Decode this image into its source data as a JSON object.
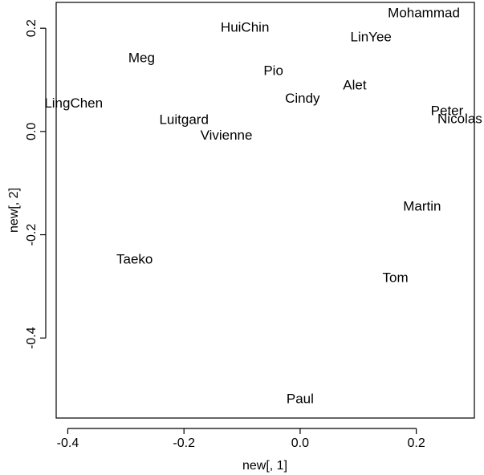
{
  "chart_data": {
    "type": "scatter",
    "marker": "text-labels",
    "xlabel": "new[, 1]",
    "ylabel": "new[, 2]",
    "xlim": [
      -0.42,
      0.3
    ],
    "ylim": [
      -0.555,
      0.25
    ],
    "x_ticks": [
      {
        "value": -0.4,
        "label": "-0.4"
      },
      {
        "value": -0.2,
        "label": "-0.2"
      },
      {
        "value": 0.0,
        "label": "0.0"
      },
      {
        "value": 0.2,
        "label": "0.2"
      }
    ],
    "y_ticks": [
      {
        "value": -0.4,
        "label": "-0.4"
      },
      {
        "value": -0.2,
        "label": "-0.2"
      },
      {
        "value": 0.0,
        "label": "0.0"
      },
      {
        "value": 0.2,
        "label": "0.2"
      }
    ],
    "points": [
      {
        "label": "Mohammad",
        "x": 0.213,
        "y": 0.23
      },
      {
        "label": "HuiChin",
        "x": -0.095,
        "y": 0.202
      },
      {
        "label": "LinYee",
        "x": 0.122,
        "y": 0.183
      },
      {
        "label": "Meg",
        "x": -0.273,
        "y": 0.143
      },
      {
        "label": "Pio",
        "x": -0.046,
        "y": 0.118
      },
      {
        "label": "Alet",
        "x": 0.094,
        "y": 0.09
      },
      {
        "label": "LingChen",
        "x": -0.39,
        "y": 0.055
      },
      {
        "label": "Cindy",
        "x": 0.004,
        "y": 0.064
      },
      {
        "label": "Peter",
        "x": 0.253,
        "y": 0.04
      },
      {
        "label": "Nicolas",
        "x": 0.275,
        "y": 0.025
      },
      {
        "label": "Luitgard",
        "x": -0.2,
        "y": 0.023
      },
      {
        "label": "Vivienne",
        "x": -0.127,
        "y": -0.007
      },
      {
        "label": "Martin",
        "x": 0.21,
        "y": -0.145
      },
      {
        "label": "Taeko",
        "x": -0.285,
        "y": -0.247
      },
      {
        "label": "Tom",
        "x": 0.164,
        "y": -0.283
      },
      {
        "label": "Paul",
        "x": 0.0,
        "y": -0.518
      }
    ],
    "grid": false,
    "legend": "none"
  }
}
